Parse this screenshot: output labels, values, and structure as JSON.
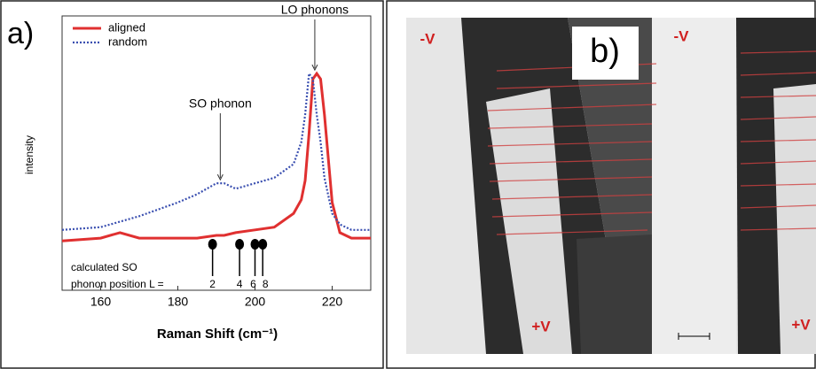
{
  "chart_data": {
    "type": "line",
    "panel_label": "a)",
    "x_label": "Raman Shift (cm⁻¹)",
    "y_label": "intensity",
    "x": [
      150,
      160,
      165,
      170,
      180,
      185,
      190,
      192,
      195,
      200,
      205,
      210,
      212,
      213,
      214,
      215,
      216,
      217,
      218,
      220,
      222,
      225,
      230
    ],
    "series": [
      {
        "name": "aligned",
        "color": "#e03030",
        "style": "solid",
        "values": [
          18,
          19,
          21,
          19,
          19,
          19,
          20,
          20,
          21,
          22,
          23,
          28,
          33,
          40,
          57,
          77,
          79,
          77,
          64,
          32,
          21,
          19,
          19
        ]
      },
      {
        "name": "random",
        "color": "#3a4fb0",
        "style": "dotted",
        "values": [
          22,
          23,
          25,
          27,
          32,
          35,
          39,
          39,
          37,
          39,
          41,
          46,
          54,
          64,
          79,
          77,
          64,
          54,
          41,
          28,
          24,
          22,
          22
        ]
      }
    ],
    "xlim": [
      150,
      230
    ],
    "xticks": [
      160,
      180,
      200,
      220
    ],
    "ylim": [
      0,
      100
    ],
    "legend": "upper-left",
    "annotations": [
      {
        "text": "SO phonon",
        "x": 191,
        "y": 39
      },
      {
        "text": "LO phonons",
        "x": 215.5,
        "y": 79
      }
    ],
    "so_positions": {
      "title_lines": [
        "calculated SO",
        "phonon position L ="
      ],
      "x": [
        189,
        196,
        200,
        202
      ],
      "labels": [
        "2",
        "4",
        "6",
        "8"
      ]
    }
  },
  "panel_b": {
    "label": "b)",
    "electrode_labels": [
      "-V",
      "-V",
      "+V",
      "+V"
    ]
  }
}
